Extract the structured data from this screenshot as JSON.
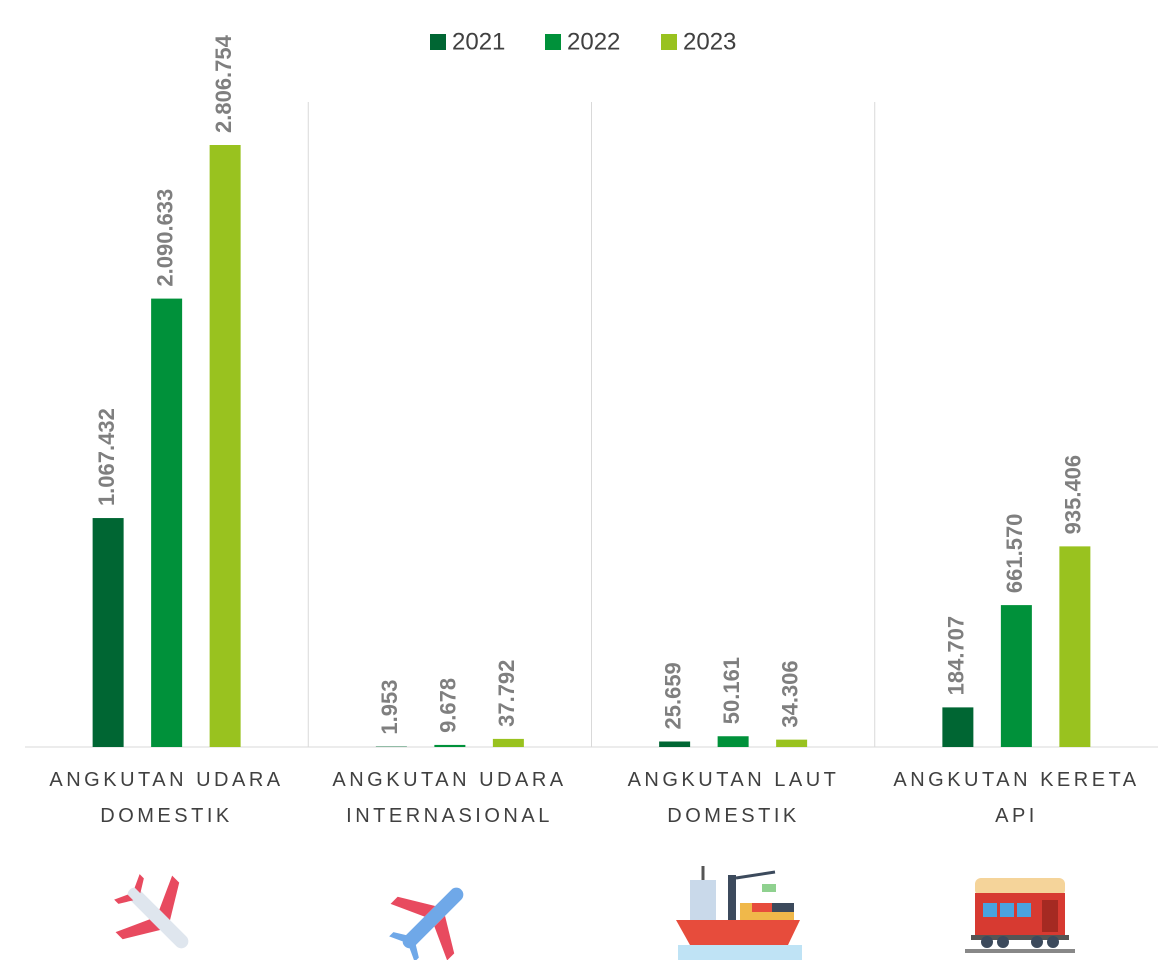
{
  "chart_data": {
    "type": "bar",
    "categories": [
      "ANGKUTAN UDARA DOMESTIK",
      "ANGKUTAN UDARA INTERNASIONAL",
      "ANGKUTAN LAUT DOMESTIK",
      "ANGKUTAN KERETA API"
    ],
    "series": [
      {
        "name": "2021",
        "color": "#006633",
        "values": [
          1067432,
          1953,
          25659,
          184707
        ],
        "value_labels": [
          "1.067.432",
          "1.953",
          "25.659",
          "184.707"
        ]
      },
      {
        "name": "2022",
        "color": "#00913a",
        "values": [
          2090633,
          9678,
          50161,
          661570
        ],
        "value_labels": [
          "2.090.633",
          "9.678",
          "50.161",
          "661.570"
        ]
      },
      {
        "name": "2023",
        "color": "#99c21f",
        "values": [
          2806754,
          37792,
          34306,
          935406
        ],
        "value_labels": [
          "2.806.754",
          "37.792",
          "34.306",
          "935.406"
        ]
      }
    ],
    "legend": "top"
  }
}
